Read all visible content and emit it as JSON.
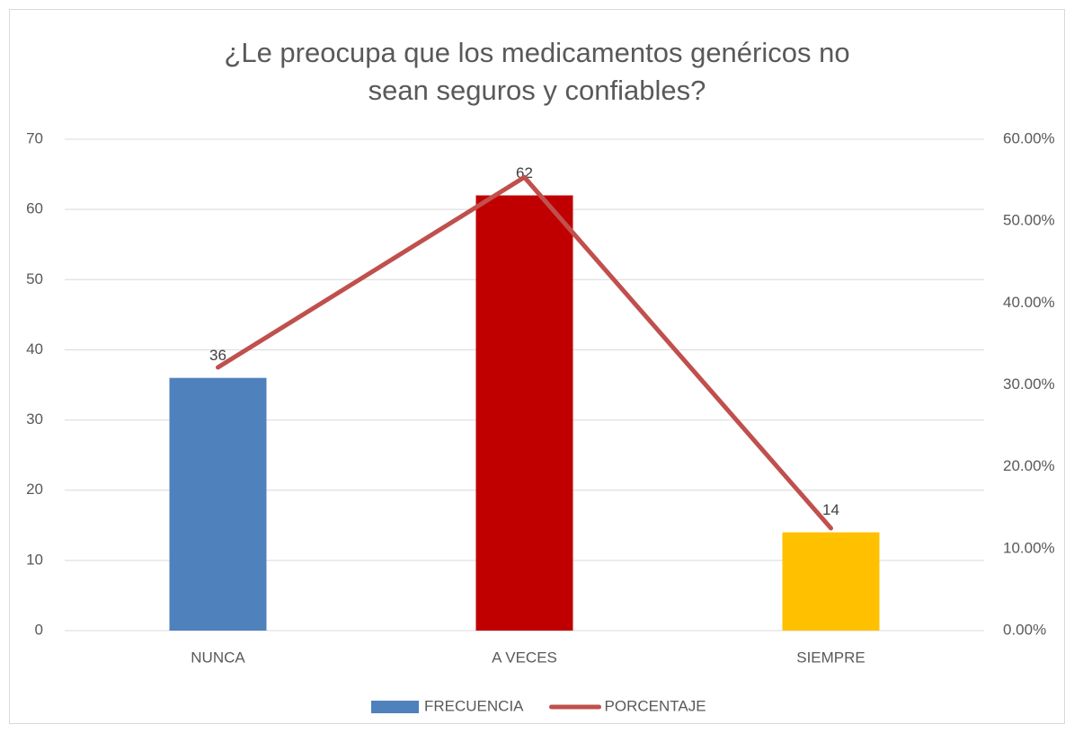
{
  "chart_data": {
    "type": "bar-line",
    "title": "¿Le preocupa que los medicamentos genéricos no sean seguros y confiables?",
    "categories": [
      "NUNCA",
      "A  VECES",
      "SIEMPRE"
    ],
    "series": [
      {
        "name": "FRECUENCIA",
        "type": "bar",
        "color": "#4f81bd",
        "colors": [
          "#4f81bd",
          "#c00000",
          "#ffc000"
        ],
        "values": [
          36,
          62,
          14
        ],
        "data_labels": true
      },
      {
        "name": "PORCENTAJE",
        "type": "line",
        "axis": "y2",
        "color": "#c0504d",
        "values": [
          32.14,
          55.36,
          12.5
        ]
      }
    ],
    "ylim": [
      0,
      70
    ],
    "yticks": [
      0,
      10,
      20,
      30,
      40,
      50,
      60,
      70
    ],
    "y2lim": [
      0,
      60
    ],
    "y2ticks": [
      {
        "value": 0,
        "label": "0.00%"
      },
      {
        "value": 10,
        "label": "10.00%"
      },
      {
        "value": 20,
        "label": "20.00%"
      },
      {
        "value": 30,
        "label": "30.00%"
      },
      {
        "value": 40,
        "label": "40.00%"
      },
      {
        "value": 50,
        "label": "50.00%"
      },
      {
        "value": 60,
        "label": "60.00%"
      }
    ],
    "grid": true,
    "legend": "bottom"
  }
}
